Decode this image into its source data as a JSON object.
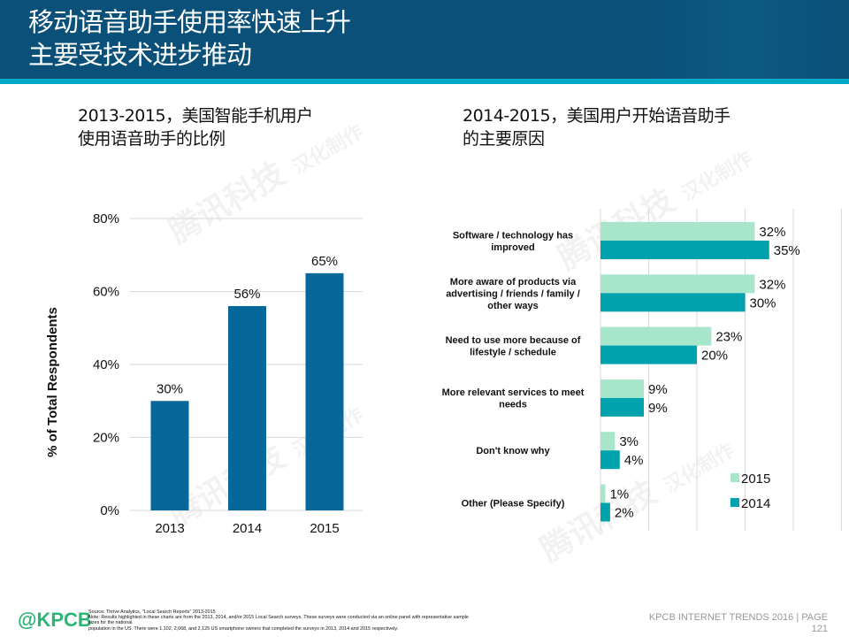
{
  "header": {
    "title_line1": "移动语音助手使用率快速上升",
    "title_line2": "主要受技术进步推动",
    "colors": {
      "background": "#0a5079",
      "strip": "#00a9c5"
    }
  },
  "watermark": {
    "text": "腾讯科技",
    "subtext": "汉化制作"
  },
  "left_panel": {
    "subtitle_line1": "2013-2015，美国智能手机用户",
    "subtitle_line2": "使用语音助手的比例"
  },
  "right_panel": {
    "subtitle_line1": "2014-2015，美国用户开始语音助手",
    "subtitle_line2": "的主要原因"
  },
  "chart_data": [
    {
      "type": "bar",
      "orientation": "vertical",
      "title": "2013-2015，美国智能手机用户使用语音助手的比例",
      "categories": [
        "2013",
        "2014",
        "2015"
      ],
      "values": [
        30,
        56,
        65
      ],
      "data_labels": [
        "30%",
        "56%",
        "65%"
      ],
      "xlabel": "",
      "ylabel": "% of Total Respondents",
      "ylim": [
        0,
        80
      ],
      "yticks": [
        0,
        20,
        40,
        60,
        80
      ],
      "ytick_labels": [
        "0%",
        "20%",
        "40%",
        "60%",
        "80%"
      ],
      "grid": true,
      "color": "#06679b"
    },
    {
      "type": "bar",
      "orientation": "horizontal",
      "title": "2014-2015，美国用户开始语音助手的主要原因",
      "categories": [
        [
          "Software / technology has",
          "improved"
        ],
        [
          "More aware of products via",
          "advertising / friends / family /",
          "other ways"
        ],
        [
          "Need to use more because of",
          "lifestyle / schedule"
        ],
        [
          "More relevant services to meet",
          "needs"
        ],
        [
          "Don't know why"
        ],
        [
          "Other (Please Specify)"
        ]
      ],
      "series": [
        {
          "name": "2015",
          "values": [
            32,
            32,
            23,
            9,
            3,
            1
          ],
          "labels": [
            "32%",
            "32%",
            "23%",
            "9%",
            "3%",
            "1%"
          ],
          "color": "#a8e6cc"
        },
        {
          "name": "2014",
          "values": [
            35,
            30,
            20,
            9,
            4,
            2
          ],
          "labels": [
            "35%",
            "30%",
            "20%",
            "9%",
            "4%",
            "2%"
          ],
          "color": "#00a3ad"
        }
      ],
      "xlim": [
        0,
        40
      ],
      "grid": true,
      "legend": "bottom-right"
    }
  ],
  "footer": {
    "logo": "@KPCB",
    "source": "Source: Thrive Analytics, \"Local Search Reports\" 2013-2015",
    "note_line1": "Note: Results highlighted in these charts are from the 2013, 2014, and/or 2015 Local Search surveys. These surveys were conducted via an online panel with representative sample sizes for the national",
    "note_line2": "population in the US. There were 1,102, 2,068, and 2,125 US smartphone owners that completed the surveys in 2013, 2014 and 2015 respectively.",
    "report": "KPCB INTERNET TRENDS 2016  |  PAGE",
    "page": "121"
  }
}
